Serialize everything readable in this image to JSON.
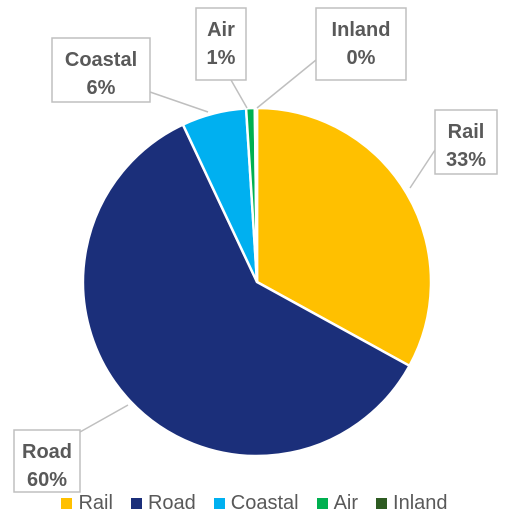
{
  "chart_data": {
    "type": "pie",
    "title": "",
    "slices": [
      {
        "name": "Rail",
        "value": 33,
        "label": "Rail\n33%",
        "color": "#FFC000"
      },
      {
        "name": "Road",
        "value": 60,
        "label": "Road\n60%",
        "color": "#1B2F7A"
      },
      {
        "name": "Coastal",
        "value": 6,
        "label": "Coastal\n6%",
        "color": "#00B0F0"
      },
      {
        "name": "Air",
        "value": 0.8,
        "label": "Air\n1%",
        "color": "#00B050"
      },
      {
        "name": "Inland",
        "value": 0.2,
        "label": "Inland\n0%",
        "color": "#2E5B22"
      }
    ],
    "legend_position": "bottom",
    "start_angle_deg": 0,
    "direction": "clockwise",
    "label_style": "callout-boxes"
  }
}
